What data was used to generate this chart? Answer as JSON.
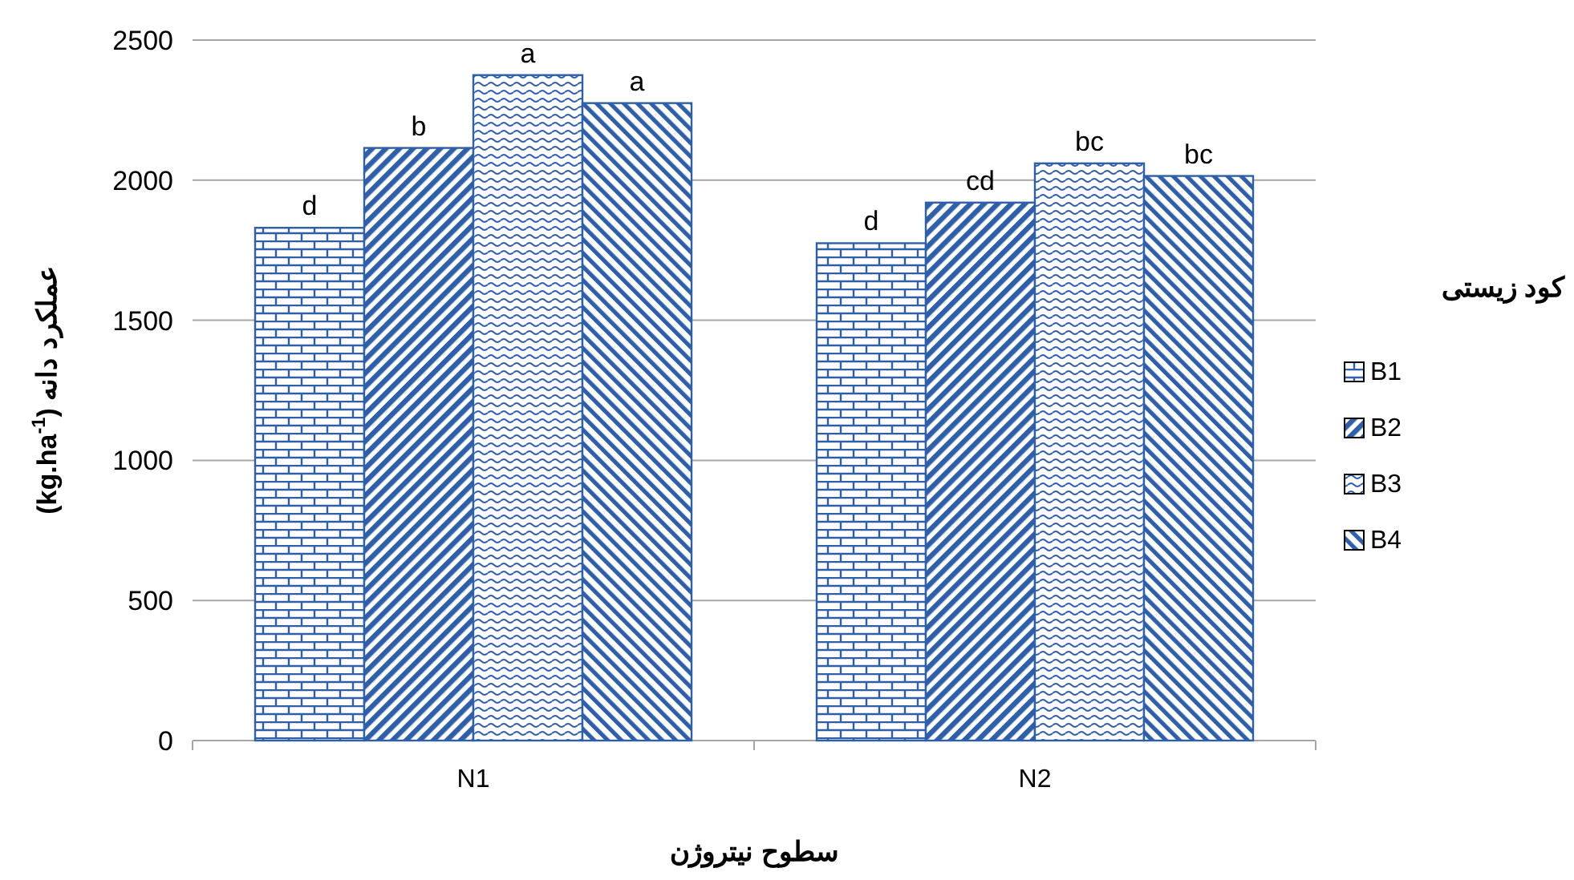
{
  "chart_data": {
    "type": "bar",
    "xlabel": "سطوح نیتروژن",
    "ylabel": "عملکرد دانه (kg.ha$^{-1}$)",
    "legend_title": "کود زیستی",
    "categories": [
      "N1",
      "N2"
    ],
    "series": [
      {
        "name": "B1",
        "color": "#2f5fa8",
        "values": [
          1830,
          1775
        ],
        "value_labels": [
          "d",
          "d"
        ]
      },
      {
        "name": "B2",
        "color": "#2f5fa8",
        "values": [
          2115,
          1920
        ],
        "value_labels": [
          "b",
          "cd"
        ]
      },
      {
        "name": "B3",
        "color": "#2f5fa8",
        "values": [
          2375,
          2060
        ],
        "value_labels": [
          "a",
          "bc"
        ]
      },
      {
        "name": "B4",
        "color": "#2f5fa8",
        "values": [
          2275,
          2015
        ],
        "value_labels": [
          "a",
          "bc"
        ]
      }
    ],
    "ylim": [
      0,
      2500
    ],
    "yticks": [
      0,
      500,
      1000,
      1500,
      2000,
      2500
    ],
    "grid": "y",
    "legend": "right"
  }
}
